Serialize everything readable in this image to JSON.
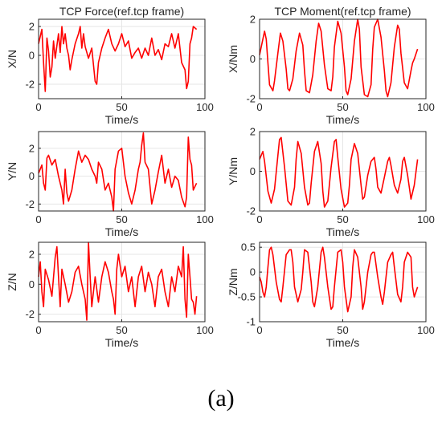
{
  "panel_label": "(a)",
  "colors": {
    "series": "#ff0000",
    "axis": "#262626",
    "grid": "#e6e6e6",
    "text": "#262626"
  },
  "chart_data": [
    {
      "type": "line",
      "title": "TCP Force(ref.tcp frame)",
      "xlabel": "Time/s",
      "ylabel": "X/N",
      "xlim": [
        0,
        100
      ],
      "ylim": [
        -3,
        2.5
      ],
      "xticks": [
        "0",
        "50",
        "100"
      ],
      "yticks": [
        "-2",
        "0",
        "2"
      ],
      "grid": true,
      "series": [
        {
          "x": [
            0,
            2,
            3,
            4,
            5,
            6,
            7,
            8,
            9,
            10,
            12,
            13,
            14,
            15,
            16,
            17,
            18,
            19,
            20,
            22,
            24,
            25,
            26,
            27,
            28,
            30,
            32,
            34,
            35,
            36,
            38,
            40,
            42,
            44,
            46,
            48,
            50,
            52,
            53,
            54,
            56,
            58,
            60,
            62,
            64,
            66,
            68,
            70,
            72,
            74,
            76,
            78,
            80,
            82,
            84,
            86,
            88,
            89,
            90,
            91,
            92,
            93,
            95
          ],
          "y": [
            0.8,
            1.8,
            -0.5,
            -2.5,
            1.2,
            0.3,
            -1.5,
            -0.8,
            1.0,
            -0.2,
            1.5,
            0.2,
            2.0,
            0.8,
            1.5,
            0.5,
            0.0,
            -1.0,
            -0.3,
            0.8,
            1.5,
            2.0,
            0.5,
            1.5,
            0.6,
            -0.2,
            0.5,
            -1.8,
            -2.0,
            -0.5,
            0.5,
            1.2,
            1.8,
            0.8,
            0.3,
            0.8,
            1.5,
            0.6,
            0.8,
            1.0,
            -0.2,
            0.2,
            0.5,
            -0.2,
            0.5,
            0.0,
            1.2,
            0.0,
            0.4,
            -0.3,
            0.8,
            0.6,
            1.5,
            0.5,
            1.5,
            -0.5,
            -1.0,
            -2.3,
            -1.8,
            0.8,
            1.2,
            2.0,
            1.8
          ]
        }
      ]
    },
    {
      "type": "line",
      "title": "TCP Moment(ref.tcp frame)",
      "xlabel": "Time/s",
      "ylabel": "X/Nm",
      "xlim": [
        0,
        100
      ],
      "ylim": [
        -2,
        2
      ],
      "xticks": [
        "0",
        "50",
        "100"
      ],
      "yticks": [
        "-2",
        "0",
        "2"
      ],
      "grid": true,
      "series": [
        {
          "x": [
            0,
            2,
            3,
            4,
            5,
            6,
            8,
            9,
            11,
            12.5,
            14,
            16,
            17,
            18,
            20,
            22,
            24,
            26,
            27,
            28,
            30,
            32,
            34,
            35.5,
            37,
            39,
            41,
            43,
            44,
            45,
            47,
            49,
            51,
            52,
            53,
            55,
            57,
            59,
            60,
            61,
            63,
            65,
            67,
            68,
            69,
            71,
            73,
            75,
            76,
            77,
            79,
            81,
            83,
            84,
            85,
            87,
            89,
            91,
            92,
            93,
            95
          ],
          "y": [
            0.2,
            1.0,
            1.4,
            1.0,
            -0.2,
            -1.3,
            -1.6,
            -1.1,
            0.3,
            1.3,
            0.9,
            -0.5,
            -1.5,
            -1.6,
            -1.0,
            0.4,
            1.3,
            0.7,
            -0.6,
            -1.6,
            -1.7,
            -0.8,
            0.9,
            1.8,
            1.4,
            -0.3,
            -1.5,
            -1.6,
            -0.9,
            0.6,
            1.9,
            1.3,
            -0.4,
            -1.6,
            -1.8,
            -1.0,
            0.9,
            2.0,
            1.5,
            -0.4,
            -1.8,
            -1.9,
            -1.3,
            0.5,
            1.6,
            2.0,
            1.1,
            -0.6,
            -1.6,
            -1.9,
            -1.2,
            0.6,
            1.7,
            1.5,
            0.3,
            -1.2,
            -1.5,
            -0.6,
            -0.2,
            0.0,
            0.5
          ]
        }
      ]
    },
    {
      "type": "line",
      "title": "",
      "xlabel": "Time/s",
      "ylabel": "Y/N",
      "xlim": [
        0,
        100
      ],
      "ylim": [
        -2.5,
        3.2
      ],
      "xticks": [
        "0",
        "50",
        "100"
      ],
      "yticks": [
        "-2",
        "0",
        "2"
      ],
      "grid": true,
      "series": [
        {
          "x": [
            0,
            2,
            3,
            4,
            5,
            6,
            8,
            10,
            12,
            14,
            15,
            16,
            17,
            18,
            20,
            22,
            24,
            26,
            28,
            30,
            32,
            34,
            35,
            36,
            38,
            40,
            42,
            44,
            45,
            46,
            48,
            50,
            52,
            54,
            56,
            58,
            60,
            61,
            62,
            63,
            64,
            66,
            68,
            70,
            72,
            74,
            76,
            78,
            80,
            82,
            84,
            86,
            88,
            89,
            90,
            91,
            92,
            93,
            95
          ],
          "y": [
            0.2,
            0.8,
            -0.5,
            -1.0,
            1.3,
            1.5,
            0.8,
            1.2,
            0.0,
            -1.0,
            -2.0,
            0.5,
            -1.2,
            -1.8,
            -1.0,
            0.5,
            1.8,
            1.0,
            1.5,
            1.2,
            0.5,
            0.0,
            -0.5,
            1.0,
            0.5,
            -1.0,
            -0.5,
            -1.5,
            -2.5,
            0.5,
            1.8,
            2.0,
            0.0,
            -1.2,
            -2.0,
            -1.0,
            0.5,
            1.0,
            2.2,
            3.1,
            1.0,
            0.5,
            -2.0,
            -1.0,
            0.3,
            1.5,
            -0.5,
            0.5,
            -0.8,
            0.0,
            -0.3,
            -1.5,
            -2.2,
            -1.5,
            2.8,
            1.2,
            0.8,
            -1.0,
            -0.5
          ]
        }
      ]
    },
    {
      "type": "line",
      "title": "",
      "xlabel": "Time/s",
      "ylabel": "Y/Nm",
      "xlim": [
        0,
        100
      ],
      "ylim": [
        -2,
        2
      ],
      "xticks": [
        "0",
        "50",
        "100"
      ],
      "yticks": [
        "-2",
        "0",
        "2"
      ],
      "grid": true,
      "series": [
        {
          "x": [
            0,
            2,
            3,
            5,
            7,
            9,
            11,
            12,
            13,
            15,
            17,
            19,
            21,
            22,
            23,
            25,
            27,
            29,
            30,
            31,
            33,
            35,
            37,
            38,
            39,
            41,
            43,
            45,
            46,
            47,
            49,
            51,
            53,
            54,
            55,
            57,
            59,
            61,
            62,
            63,
            65,
            67,
            69,
            70,
            71,
            73,
            75,
            77,
            78,
            79,
            81,
            83,
            85,
            86,
            87,
            89,
            91,
            93,
            95
          ],
          "y": [
            0.6,
            1.0,
            0.5,
            -1.0,
            -1.6,
            -0.9,
            0.8,
            1.6,
            1.7,
            0.2,
            -1.5,
            -1.7,
            -0.8,
            0.6,
            1.5,
            0.9,
            -0.8,
            -1.7,
            -1.6,
            -0.6,
            1.0,
            1.5,
            0.4,
            -1.0,
            -1.8,
            -1.5,
            0.2,
            1.5,
            1.6,
            0.7,
            -0.9,
            -1.8,
            -1.6,
            -0.7,
            0.6,
            1.4,
            0.9,
            -0.7,
            -1.4,
            -1.3,
            -0.2,
            0.5,
            0.7,
            0.1,
            -0.8,
            -1.1,
            -0.3,
            0.5,
            0.7,
            0.3,
            -0.7,
            -1.1,
            -0.4,
            0.5,
            0.7,
            -0.2,
            -1.4,
            -0.7,
            0.6
          ]
        }
      ]
    },
    {
      "type": "line",
      "title": "",
      "xlabel": "Time/s",
      "ylabel": "Z/N",
      "xlim": [
        0,
        100
      ],
      "ylim": [
        -2.5,
        2.8
      ],
      "xticks": [
        "0",
        "50",
        "100"
      ],
      "yticks": [
        "-2",
        "0",
        "2"
      ],
      "grid": true,
      "series": [
        {
          "x": [
            0,
            1,
            2,
            3,
            4,
            6,
            8,
            10,
            11,
            12,
            13,
            14,
            16,
            18,
            20,
            22,
            24,
            26,
            28,
            29,
            30,
            31,
            32,
            34,
            36,
            38,
            40,
            42,
            44,
            45,
            46,
            47,
            48,
            50,
            52,
            54,
            56,
            58,
            60,
            62,
            64,
            66,
            68,
            70,
            72,
            74,
            76,
            78,
            80,
            82,
            84,
            86,
            87,
            88,
            89,
            90,
            91,
            92,
            93,
            94,
            95
          ],
          "y": [
            0.5,
            1.5,
            -0.5,
            -1.5,
            1.0,
            0.3,
            -0.8,
            1.8,
            2.5,
            0.5,
            -1.5,
            1.0,
            0.0,
            -1.2,
            -0.5,
            0.8,
            1.2,
            0.0,
            -1.0,
            -2.4,
            2.8,
            0.5,
            -1.5,
            0.5,
            -1.2,
            0.5,
            1.5,
            0.8,
            -0.5,
            -1.0,
            -2.0,
            1.0,
            2.0,
            0.5,
            1.2,
            -0.5,
            0.5,
            -1.5,
            0.5,
            1.2,
            -0.5,
            0.8,
            0.0,
            -1.5,
            0.5,
            1.0,
            -0.5,
            -1.5,
            0.5,
            -0.5,
            1.2,
            0.5,
            2.5,
            -1.0,
            -2.2,
            2.0,
            0.5,
            -1.0,
            -1.2,
            -2.0,
            -0.8
          ]
        }
      ]
    },
    {
      "type": "line",
      "title": "",
      "xlabel": "Time/s",
      "ylabel": "Z/Nm",
      "xlim": [
        0,
        100
      ],
      "ylim": [
        -1,
        0.6
      ],
      "xticks": [
        "0",
        "50",
        "100"
      ],
      "yticks": [
        "-1",
        "-0.5",
        "0",
        "0.5"
      ],
      "grid": true,
      "series": [
        {
          "x": [
            0,
            1,
            2,
            3,
            4,
            5,
            6,
            7,
            8,
            10,
            12,
            13,
            14,
            16,
            18,
            19,
            20,
            21,
            23,
            25,
            26,
            27,
            29,
            31,
            32,
            33,
            35,
            37,
            38,
            39,
            41,
            43,
            44,
            45,
            47,
            49,
            50,
            51,
            53,
            55,
            56,
            57,
            59,
            61,
            62,
            63,
            65,
            67,
            68,
            69,
            71,
            73,
            74,
            75,
            77,
            79,
            80,
            81,
            83,
            85,
            86,
            87,
            89,
            91,
            92,
            93,
            95
          ],
          "y": [
            -0.1,
            -0.2,
            -0.4,
            -0.5,
            -0.3,
            0.1,
            0.45,
            0.5,
            0.35,
            -0.2,
            -0.55,
            -0.6,
            -0.3,
            0.35,
            0.45,
            0.45,
            0.2,
            -0.3,
            -0.6,
            -0.35,
            0.0,
            0.45,
            0.4,
            -0.2,
            -0.6,
            -0.7,
            -0.3,
            0.4,
            0.5,
            0.3,
            -0.3,
            -0.75,
            -0.7,
            -0.3,
            0.4,
            0.45,
            0.2,
            -0.3,
            -0.8,
            -0.5,
            0.1,
            0.45,
            0.3,
            -0.3,
            -0.75,
            -0.6,
            0.0,
            0.35,
            0.4,
            0.4,
            -0.1,
            -0.5,
            -0.65,
            -0.4,
            0.2,
            0.35,
            0.4,
            0.1,
            -0.45,
            -0.6,
            -0.3,
            0.2,
            0.4,
            0.3,
            -0.3,
            -0.5,
            -0.3
          ]
        }
      ]
    }
  ]
}
